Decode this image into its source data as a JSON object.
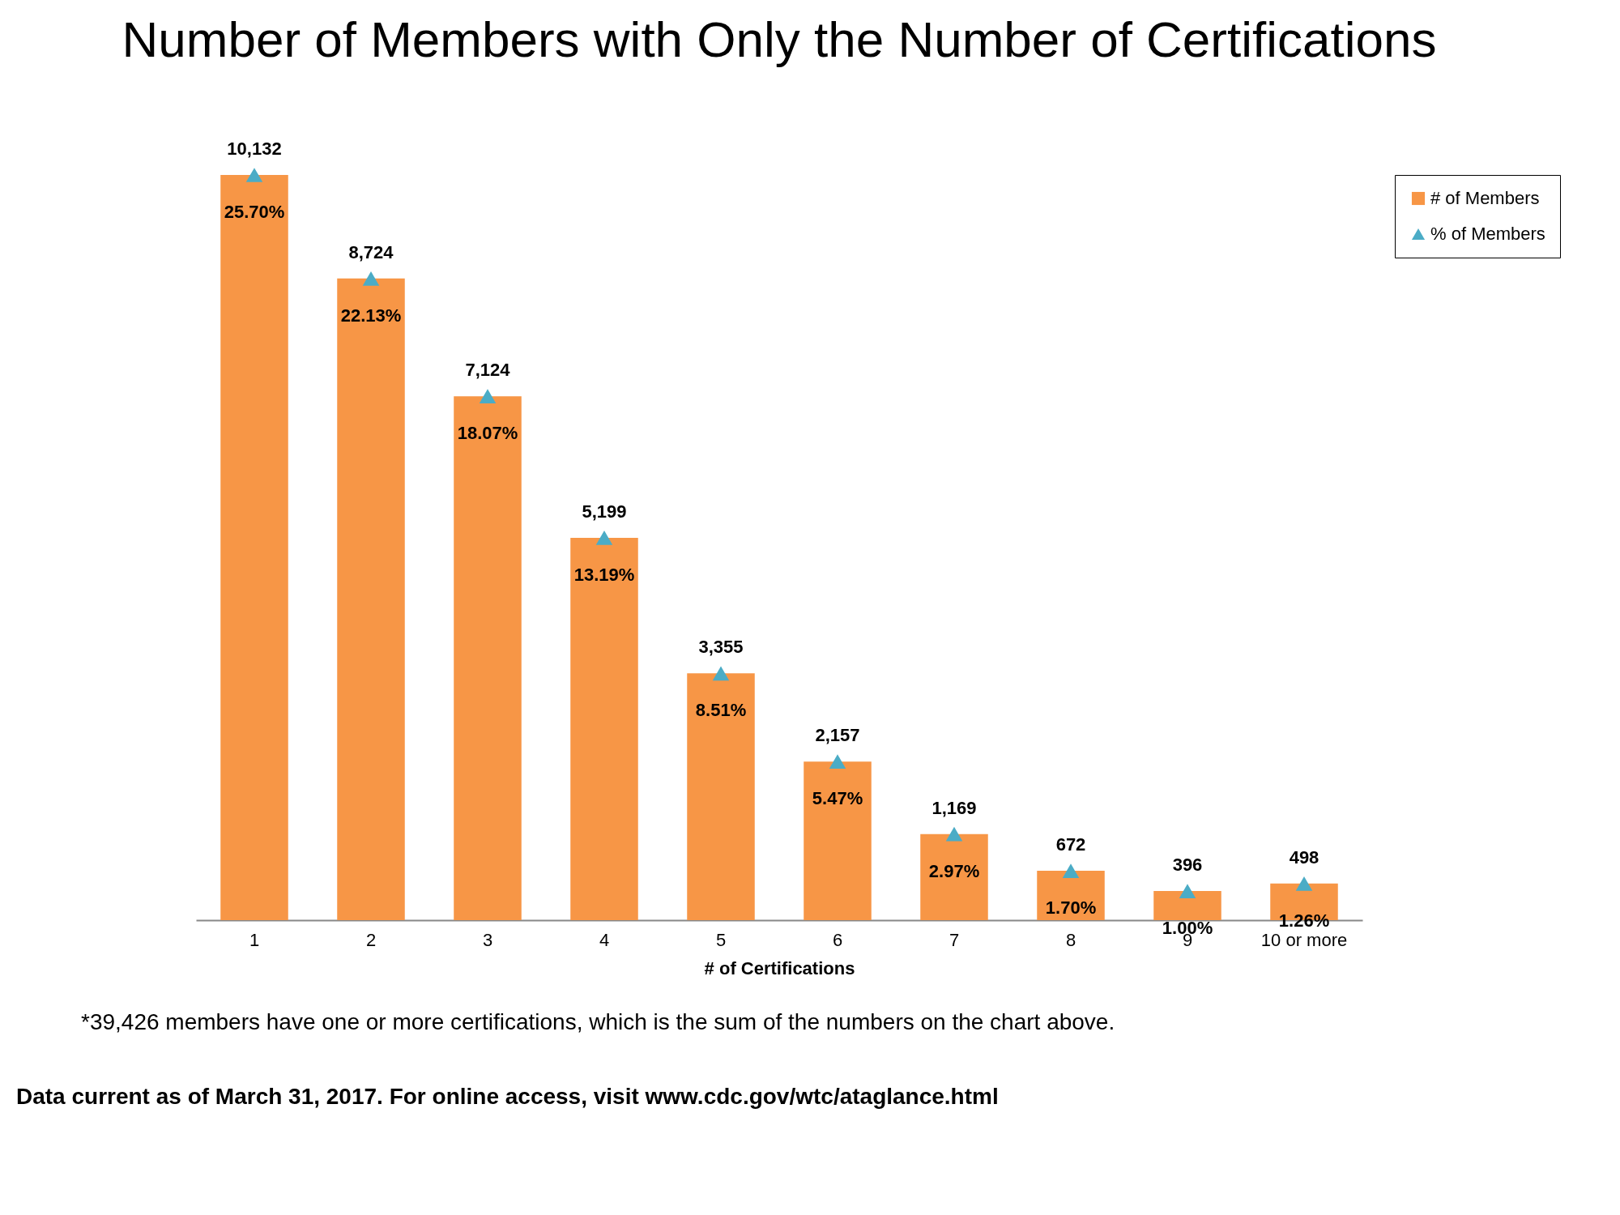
{
  "chart_data": {
    "type": "bar",
    "title": "Number of Members with Only the Number of Certifications",
    "xlabel": "# of Certifications",
    "categories": [
      "1",
      "2",
      "3",
      "4",
      "5",
      "6",
      "7",
      "8",
      "9",
      "10 or more"
    ],
    "series": [
      {
        "name": "# of Members",
        "color": "#f79646",
        "values": [
          10132,
          8724,
          7124,
          5199,
          3355,
          2157,
          1169,
          672,
          396,
          498
        ],
        "value_labels": [
          "10,132",
          "8,724",
          "7,124",
          "5,199",
          "3,355",
          "2,157",
          "1,169",
          "672",
          "396",
          "498"
        ]
      },
      {
        "name": "% of Members",
        "type": "scatter",
        "axis": "y2",
        "marker": "triangle",
        "color": "#4bacc6",
        "values": [
          25.7,
          22.13,
          18.07,
          13.19,
          8.51,
          5.47,
          2.97,
          1.7,
          1.0,
          1.26
        ],
        "value_labels": [
          "25.70%",
          "22.13%",
          "18.07%",
          "13.19%",
          "8.51%",
          "5.47%",
          "2.97%",
          "1.70%",
          "1.00%",
          "1.26%"
        ]
      }
    ],
    "legend": "right",
    "grid": false,
    "annotations": [
      "*39,426 members have one or more certifications, which is the sum of the numbers on the chart above.",
      "Data current as of March 31, 2017. For online access, visit www.cdc.gov/wtc/ataglance.html"
    ]
  }
}
